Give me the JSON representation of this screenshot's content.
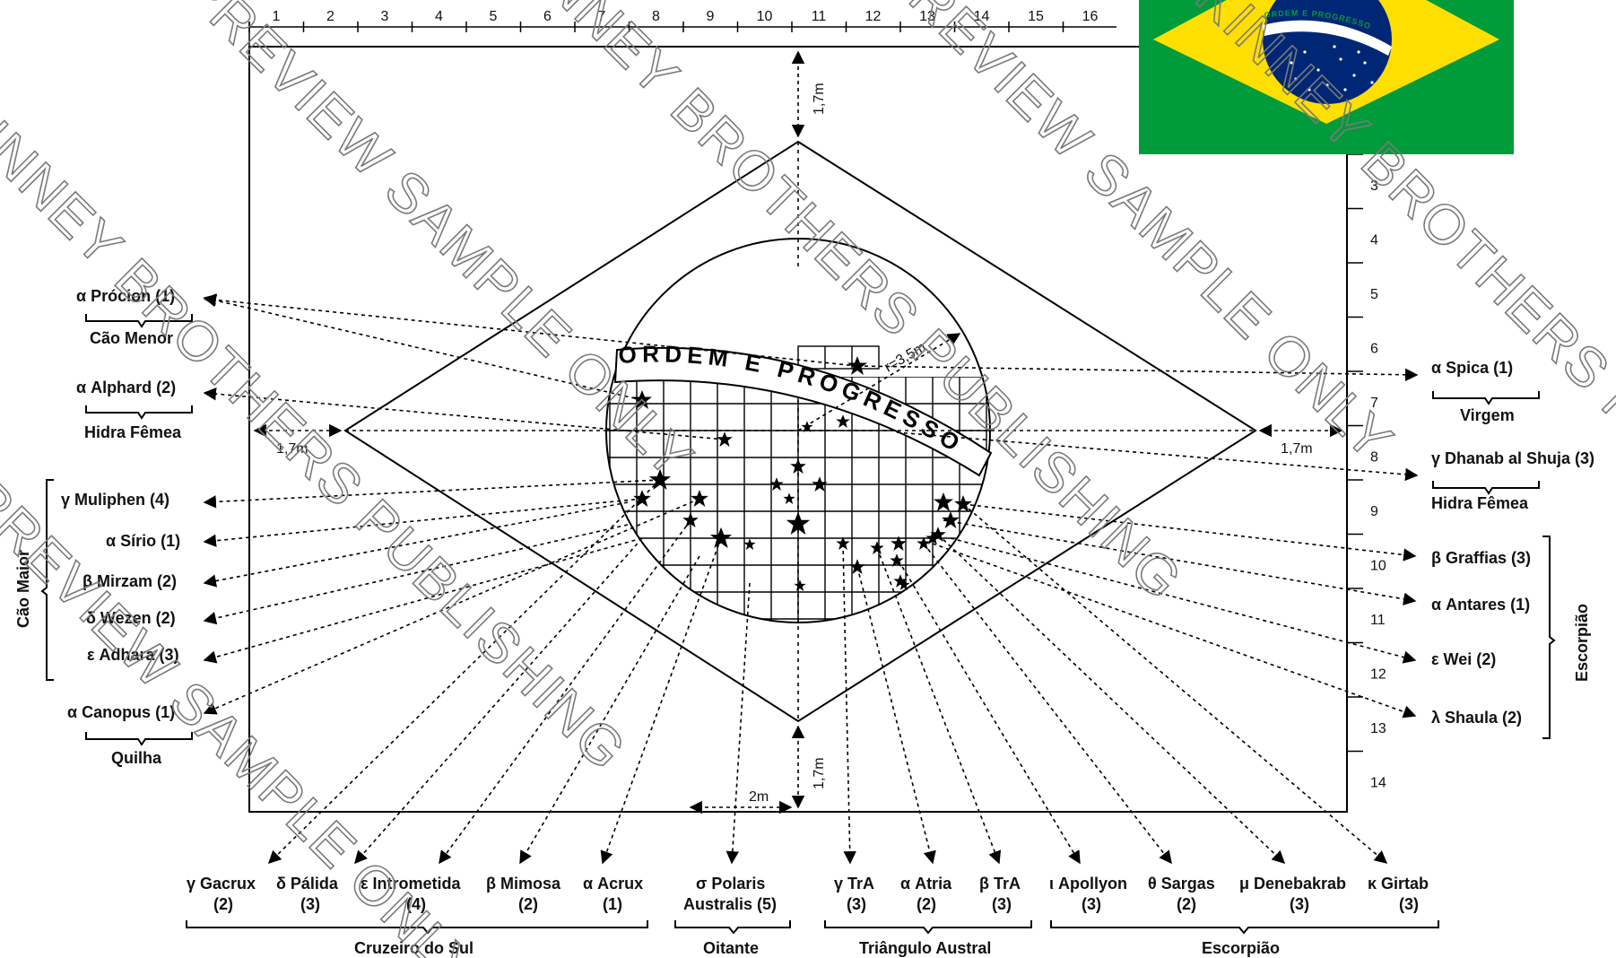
{
  "ruler_top": [
    "1",
    "2",
    "3",
    "4",
    "5",
    "6",
    "7",
    "8",
    "9",
    "10",
    "11",
    "12",
    "13",
    "14",
    "15",
    "16"
  ],
  "ruler_right": [
    "3",
    "4",
    "5",
    "6",
    "7",
    "8",
    "9",
    "10",
    "11",
    "12",
    "13",
    "14"
  ],
  "motto": "ORDEM E PROGRESSO",
  "flag_motto": "ORDEM E PROGRESSO",
  "dimensions": {
    "top": "1,7m",
    "bottom": "1,7m",
    "left": "1,7m",
    "right": "1,7m",
    "radius": "r=3,5m",
    "grid": "2m"
  },
  "left_labels": {
    "procion": "α Prócion (1)",
    "cao_menor": "Cão Menor",
    "alphard": "α Alphard (2)",
    "hidra_femea": "Hidra Fêmea",
    "muliphen": "γ Muliphen (4)",
    "sirio": "α Sírio (1)",
    "mirzam": "β Mirzam (2)",
    "wezen": "δ Wezen (2)",
    "adhara": "ε Adhara (3)",
    "cao_maior": "Cão Maior",
    "canopus": "α Canopus (1)",
    "quilha": "Quilha"
  },
  "right_labels": {
    "spica": "α Spica (1)",
    "virgem": "Virgem",
    "dhanab": "γ Dhanab al Shuja (3)",
    "hidra_femea": "Hidra Fêmea",
    "graffias": "β Graffias (3)",
    "antares": "α Antares (1)",
    "wei": "ε Wei (2)",
    "shaula": "λ Shaula (2)",
    "escorpiao": "Escorpião"
  },
  "bottom_labels": {
    "gacrux_name": "γ Gacrux",
    "gacrux_mag": "(2)",
    "palida_name": "δ Pálida",
    "palida_mag": "(3)",
    "intrometida_name": "ε Intrometida",
    "intrometida_mag": "(4)",
    "mimosa_name": "β Mimosa",
    "mimosa_mag": "(2)",
    "acrux_name": "α Acrux",
    "acrux_mag": "(1)",
    "polaris_name": "σ Polaris",
    "polaris_name2": "Australis (5)",
    "tra_g_name": "γ TrA",
    "tra_g_mag": "(3)",
    "atria_name": "α Atria",
    "atria_mag": "(2)",
    "tra_b_name": "β TrA",
    "tra_b_mag": "(3)",
    "apollyon_name": "ι Apollyon",
    "apollyon_mag": "(3)",
    "sargas_name": "θ Sargas",
    "sargas_mag": "(2)",
    "denebakrab_name": "μ Denebakrab",
    "denebakrab_mag": "(3)",
    "girtab_name": "κ Girtab",
    "girtab_mag": "(3)",
    "cruzeiro": "Cruzeiro do Sul",
    "oitante": "Oitante",
    "triangulo": "Triângulo Austral",
    "escorpiao": "Escorpião"
  },
  "watermark": [
    "KINNEY BROTHERS PUBLISHING",
    "PREVIEW SAMPLE ONLY",
    "KINNEY BROTHERS PUBLISHING",
    "PREVIEW SAMPLE ONLY",
    "KINNEY BROTHERS PUBLISHING",
    "PREVIEW SAMPLE ONLY"
  ],
  "colors": {
    "flag_green": "#009b3a",
    "flag_yellow": "#fedf00",
    "flag_blue": "#002776",
    "line": "#000000"
  }
}
